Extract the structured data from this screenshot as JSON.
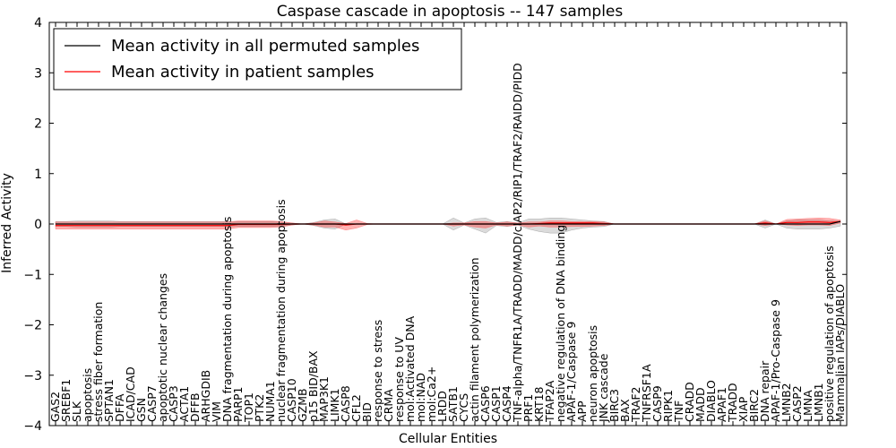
{
  "chart_data": {
    "type": "line",
    "title": "Caspase cascade in apoptosis -- 147 samples",
    "xlabel": "Cellular Entities",
    "ylabel": "Inferred Activity",
    "ylim": [
      -4,
      4
    ],
    "yticks": [
      -4,
      -3,
      -2,
      -1,
      0,
      1,
      2,
      3,
      4
    ],
    "legend": {
      "location": "top-left",
      "entries": [
        {
          "label": "Mean activity in all permuted samples",
          "color": "#000000"
        },
        {
          "label": "Mean activity in patient samples",
          "color": "#ff0000"
        }
      ]
    },
    "categories": [
      "GAS2",
      "SREBF1",
      "SLK",
      "apoptosis",
      "stress fiber formation",
      "SPTAN1",
      "DFFA",
      "ICAD/CAD",
      "GSN",
      "CASP7",
      "apoptotic nuclear changes",
      "CASP3",
      "ACTA1",
      "DFFB",
      "ARHGDIB",
      "VIM",
      "DNA fragmentation during apoptosis",
      "PARP1",
      "TOP1",
      "PTK2",
      "NUMA1",
      "nuclear fragmentation during apoptosis",
      "CASP10",
      "GZMB",
      "p15 BID/BAX",
      "MAP3K1",
      "LIMK1",
      "CASP8",
      "CFL2",
      "BID",
      "response to stress",
      "CRMA",
      "response to UV",
      "mol:Activated DNA",
      "mol:NAD",
      "mol:Ca2+",
      "LRDD",
      "SATB1",
      "CYCS",
      "actin filament polymerization",
      "CASP6",
      "CASP1",
      "CASP4",
      "TNF-alpha/TNFR1A/TRADD/MADD/cIAP2/RIP1/TRAF2/RAIDD/PIDD",
      "PRF1",
      "KRT18",
      "TFAP2A",
      "negative regulation of DNA binding",
      "APAF-1/Caspase 9",
      "APP",
      "neuron apoptosis",
      "JNK cascade",
      "BIRC3",
      "BAX",
      "TRAF2",
      "TNFRSF1A",
      "CASP9",
      "RIPK1",
      "TNF",
      "CRADD",
      "MADD",
      "DIABLO",
      "APAF1",
      "TRADD",
      "XIAP",
      "BIRC2",
      "DNA repair",
      "APAF-1/Pro-Caspase 9",
      "LMNB2",
      "CASP2",
      "LMNA",
      "LMNB1",
      "positive regulation of apoptosis",
      "Mammalian IAPs/DIABLO"
    ],
    "series": [
      {
        "name": "Mean activity in all permuted samples",
        "color": "#000000",
        "values": [
          0,
          0,
          0,
          0,
          0,
          0,
          0,
          0,
          0,
          0,
          0,
          0,
          0,
          0,
          0,
          0,
          0,
          0,
          0,
          0,
          0,
          0,
          0,
          0,
          0,
          0,
          0,
          0,
          0,
          0,
          0,
          0,
          0,
          0,
          0,
          0,
          0,
          0,
          0,
          0,
          0,
          0,
          0,
          0,
          0,
          0,
          0,
          0,
          0,
          0,
          0,
          0,
          0,
          0,
          0,
          0,
          0,
          0,
          0,
          0,
          0,
          0,
          0,
          0,
          0,
          0,
          0,
          0,
          0,
          0,
          0,
          0,
          0,
          0.05
        ],
        "band_upper": [
          0.05,
          0.05,
          0.06,
          0.06,
          0.06,
          0.06,
          0.05,
          0.05,
          0.05,
          0.05,
          0.05,
          0.05,
          0.05,
          0.05,
          0.05,
          0.05,
          0.05,
          0.05,
          0.05,
          0.05,
          0.05,
          0.04,
          0.02,
          0,
          0.03,
          0.08,
          0.1,
          0,
          0,
          0,
          0,
          0,
          0,
          0,
          0,
          0,
          0,
          0.12,
          0.02,
          0.1,
          0.12,
          0.03,
          0.05,
          0.02,
          0.1,
          0.1,
          0.12,
          0.12,
          0.1,
          0.08,
          0.06,
          0.05,
          0,
          0,
          0,
          0,
          0,
          0,
          0,
          0,
          0,
          0,
          0,
          0,
          0,
          0,
          0.08,
          0,
          0.06,
          0.08,
          0.08,
          0.08,
          0.06,
          0.06
        ],
        "band_lower": [
          -0.05,
          -0.05,
          -0.06,
          -0.06,
          -0.06,
          -0.06,
          -0.05,
          -0.05,
          -0.05,
          -0.05,
          -0.05,
          -0.05,
          -0.05,
          -0.05,
          -0.05,
          -0.05,
          -0.05,
          -0.05,
          -0.05,
          -0.05,
          -0.05,
          -0.04,
          -0.02,
          0,
          -0.03,
          -0.08,
          -0.1,
          0,
          0,
          0,
          0,
          0,
          0,
          0,
          0,
          0,
          0,
          -0.12,
          -0.02,
          -0.1,
          -0.18,
          -0.03,
          -0.05,
          -0.02,
          -0.1,
          -0.15,
          -0.18,
          -0.18,
          -0.12,
          -0.08,
          -0.06,
          -0.05,
          0,
          0,
          0,
          0,
          0,
          0,
          0,
          0,
          0,
          0,
          0,
          0,
          0,
          0,
          -0.08,
          0,
          -0.08,
          -0.1,
          -0.1,
          -0.1,
          -0.08,
          -0.04
        ]
      },
      {
        "name": "Mean activity in patient samples",
        "color": "#ff0000",
        "values": [
          -0.03,
          -0.03,
          -0.03,
          -0.03,
          -0.03,
          -0.03,
          -0.03,
          -0.03,
          -0.03,
          -0.03,
          -0.03,
          -0.03,
          -0.03,
          -0.03,
          -0.03,
          -0.03,
          -0.03,
          -0.01,
          -0.01,
          -0.01,
          -0.01,
          -0.01,
          0,
          0,
          0,
          0,
          0,
          -0.02,
          0,
          0,
          0,
          0,
          0,
          0,
          0,
          0,
          0,
          0,
          0,
          0,
          0,
          0,
          0,
          0,
          0,
          0.01,
          0.02,
          0.02,
          0.02,
          0.02,
          0.02,
          0.01,
          0,
          0,
          0,
          0,
          0,
          0,
          0,
          0,
          0,
          0,
          0,
          0,
          0,
          0,
          0.02,
          0,
          0.03,
          0.03,
          0.04,
          0.04,
          0.03,
          0.05
        ],
        "band_upper": [
          0.04,
          0.04,
          0.04,
          0.04,
          0.04,
          0.04,
          0.04,
          0.04,
          0.04,
          0.04,
          0.04,
          0.04,
          0.04,
          0.04,
          0.04,
          0.04,
          0.04,
          0.06,
          0.06,
          0.06,
          0.06,
          0.05,
          0.02,
          0,
          0.02,
          0.06,
          0.04,
          0.01,
          0.08,
          0.01,
          0,
          0,
          0,
          0,
          0,
          0,
          0,
          0.02,
          0.02,
          0.05,
          0.05,
          0.02,
          0.04,
          0.02,
          0.04,
          0.04,
          0.06,
          0.06,
          0.05,
          0.05,
          0.05,
          0.04,
          0,
          0,
          0,
          0,
          0,
          0,
          0,
          0,
          0,
          0,
          0,
          0,
          0,
          0,
          0.06,
          0,
          0.09,
          0.1,
          0.11,
          0.12,
          0.11,
          0.08
        ],
        "band_lower": [
          -0.1,
          -0.1,
          -0.1,
          -0.1,
          -0.1,
          -0.1,
          -0.1,
          -0.1,
          -0.1,
          -0.1,
          -0.1,
          -0.1,
          -0.1,
          -0.1,
          -0.1,
          -0.1,
          -0.1,
          -0.07,
          -0.07,
          -0.07,
          -0.07,
          -0.06,
          -0.02,
          0,
          -0.02,
          -0.06,
          -0.06,
          -0.12,
          -0.08,
          -0.01,
          0,
          0,
          0,
          0,
          0,
          0,
          0,
          -0.04,
          -0.02,
          -0.06,
          -0.08,
          -0.02,
          -0.04,
          -0.02,
          -0.06,
          -0.04,
          -0.06,
          -0.06,
          -0.05,
          -0.05,
          -0.04,
          -0.03,
          0,
          0,
          0,
          0,
          0,
          0,
          0,
          0,
          0,
          0,
          0,
          0,
          0,
          0,
          -0.03,
          0,
          -0.02,
          -0.03,
          -0.02,
          -0.02,
          -0.03,
          0.02
        ]
      }
    ]
  }
}
